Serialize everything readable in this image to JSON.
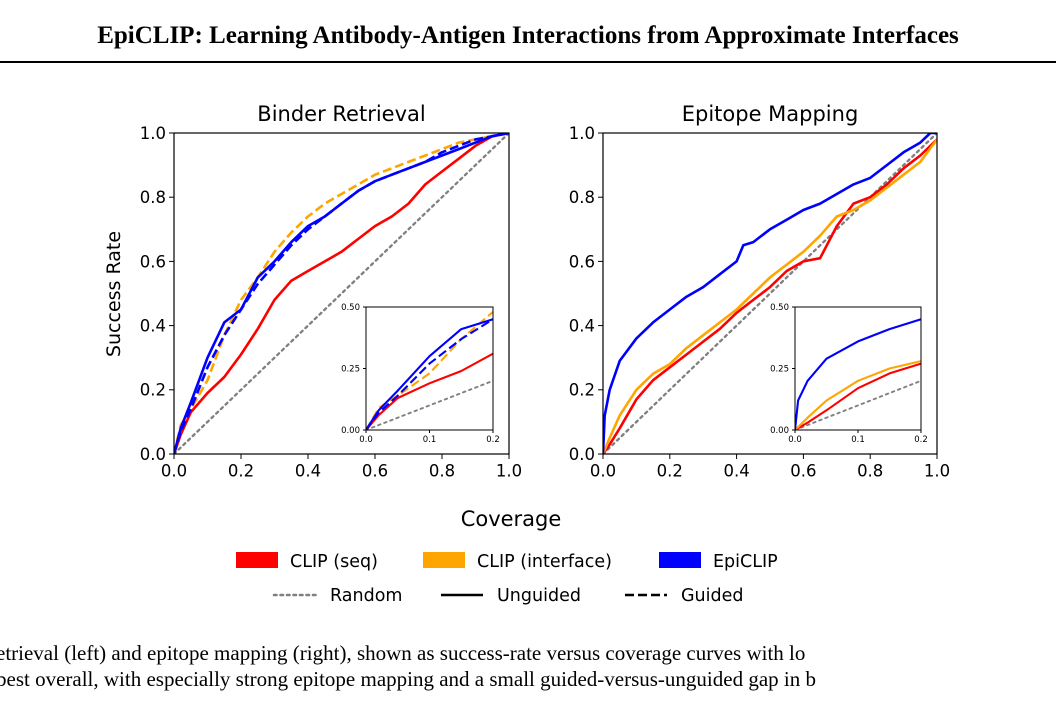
{
  "header": {
    "title": "EpiCLIP: Learning Antibody-Antigen Interactions from Approximate Interfaces"
  },
  "caption": {
    "line1": "etrieval (left) and epitope mapping (right), shown as success-rate versus coverage curves with lo",
    "line2": "best overall, with especially strong epitope mapping and a small guided-versus-unguided gap in b"
  },
  "figure": {
    "shared_xlabel": "Coverage",
    "shared_ylabel": "Success Rate"
  },
  "legend": {
    "colors": [
      {
        "label": "CLIP (seq)",
        "color": "#ff0000"
      },
      {
        "label": "CLIP (interface)",
        "color": "#ffa500"
      },
      {
        "label": "EpiCLIP",
        "color": "#0000ff"
      }
    ],
    "styles": [
      {
        "label": "Random",
        "dash": "dotted",
        "color": "#808080"
      },
      {
        "label": "Unguided",
        "dash": "solid",
        "color": "#000000"
      },
      {
        "label": "Guided",
        "dash": "dashed",
        "color": "#000000"
      }
    ]
  },
  "chart_data": [
    {
      "type": "line",
      "title": "Binder Retrieval",
      "xlabel": "Coverage",
      "ylabel": "Success Rate",
      "xlim": [
        0,
        1
      ],
      "ylim": [
        0,
        1
      ],
      "xticks": [
        "0.0",
        "0.2",
        "0.4",
        "0.6",
        "0.8",
        "1.0"
      ],
      "yticks": [
        "0.0",
        "0.2",
        "0.4",
        "0.6",
        "0.8",
        "1.0"
      ],
      "series": [
        {
          "name": "Random",
          "style": "dotted",
          "color": "#808080",
          "x": [
            0,
            1
          ],
          "y": [
            0,
            1
          ]
        },
        {
          "name": "CLIP (seq), Unguided",
          "style": "solid",
          "color": "#ff0000",
          "x": [
            0,
            0.02,
            0.05,
            0.1,
            0.15,
            0.2,
            0.25,
            0.3,
            0.35,
            0.4,
            0.45,
            0.5,
            0.55,
            0.6,
            0.65,
            0.7,
            0.75,
            0.8,
            0.85,
            0.9,
            0.95,
            1.0
          ],
          "y": [
            0,
            0.06,
            0.13,
            0.19,
            0.24,
            0.31,
            0.39,
            0.48,
            0.54,
            0.57,
            0.6,
            0.63,
            0.67,
            0.71,
            0.74,
            0.78,
            0.84,
            0.88,
            0.92,
            0.96,
            0.99,
            1.0
          ]
        },
        {
          "name": "CLIP (interface), Guided",
          "style": "dashed",
          "color": "#ffa500",
          "x": [
            0,
            0.02,
            0.05,
            0.1,
            0.15,
            0.2,
            0.25,
            0.3,
            0.35,
            0.4,
            0.45,
            0.5,
            0.55,
            0.6,
            0.65,
            0.7,
            0.75,
            0.8,
            0.85,
            0.9,
            0.95,
            1.0
          ],
          "y": [
            0,
            0.09,
            0.14,
            0.23,
            0.37,
            0.48,
            0.55,
            0.63,
            0.69,
            0.74,
            0.78,
            0.81,
            0.84,
            0.87,
            0.89,
            0.91,
            0.93,
            0.95,
            0.97,
            0.98,
            0.99,
            1.0
          ]
        },
        {
          "name": "EpiCLIP, Unguided",
          "style": "solid",
          "color": "#0000ff",
          "x": [
            0,
            0.02,
            0.05,
            0.1,
            0.15,
            0.2,
            0.25,
            0.3,
            0.35,
            0.4,
            0.45,
            0.5,
            0.55,
            0.6,
            0.65,
            0.7,
            0.75,
            0.8,
            0.85,
            0.9,
            0.95,
            1.0
          ],
          "y": [
            0,
            0.08,
            0.16,
            0.3,
            0.41,
            0.45,
            0.55,
            0.6,
            0.66,
            0.71,
            0.74,
            0.78,
            0.82,
            0.85,
            0.87,
            0.89,
            0.91,
            0.93,
            0.95,
            0.97,
            0.99,
            1.0
          ]
        },
        {
          "name": "EpiCLIP, Guided",
          "style": "dashed",
          "color": "#0000ff",
          "x": [
            0,
            0.02,
            0.05,
            0.1,
            0.15,
            0.2,
            0.25,
            0.3,
            0.35,
            0.4,
            0.45,
            0.5,
            0.55,
            0.6,
            0.65,
            0.7,
            0.75,
            0.8,
            0.85,
            0.9,
            0.95,
            1.0
          ],
          "y": [
            0,
            0.07,
            0.14,
            0.27,
            0.37,
            0.45,
            0.53,
            0.59,
            0.65,
            0.7,
            0.74,
            0.78,
            0.82,
            0.85,
            0.87,
            0.89,
            0.91,
            0.94,
            0.96,
            0.98,
            0.99,
            1.0
          ]
        }
      ],
      "inset": {
        "xlim": [
          0,
          0.2
        ],
        "ylim": [
          0,
          0.5
        ],
        "xticks": [
          "0.0",
          "0.1",
          "0.2"
        ],
        "yticks": [
          "0.00",
          "0.25",
          "0.50"
        ]
      }
    },
    {
      "type": "line",
      "title": "Epitope Mapping",
      "xlabel": "Coverage",
      "ylabel": "",
      "xlim": [
        0,
        1
      ],
      "ylim": [
        0,
        1
      ],
      "xticks": [
        "0.0",
        "0.2",
        "0.4",
        "0.6",
        "0.8",
        "1.0"
      ],
      "yticks": [
        "0.0",
        "0.2",
        "0.4",
        "0.6",
        "0.8",
        "1.0"
      ],
      "series": [
        {
          "name": "Random",
          "style": "dotted",
          "color": "#808080",
          "x": [
            0,
            1
          ],
          "y": [
            0,
            1
          ]
        },
        {
          "name": "CLIP (seq), Unguided",
          "style": "solid",
          "color": "#ff0000",
          "x": [
            0,
            0.02,
            0.05,
            0.1,
            0.15,
            0.2,
            0.25,
            0.3,
            0.35,
            0.4,
            0.45,
            0.5,
            0.55,
            0.6,
            0.65,
            0.67,
            0.7,
            0.75,
            0.8,
            0.85,
            0.9,
            0.95,
            1.0
          ],
          "y": [
            0,
            0.03,
            0.08,
            0.17,
            0.23,
            0.27,
            0.31,
            0.35,
            0.39,
            0.44,
            0.48,
            0.52,
            0.57,
            0.6,
            0.61,
            0.65,
            0.71,
            0.78,
            0.8,
            0.84,
            0.89,
            0.93,
            0.98
          ]
        },
        {
          "name": "CLIP (interface), Unguided",
          "style": "solid",
          "color": "#ffa500",
          "x": [
            0,
            0.02,
            0.05,
            0.1,
            0.15,
            0.2,
            0.25,
            0.3,
            0.35,
            0.4,
            0.45,
            0.5,
            0.55,
            0.6,
            0.65,
            0.7,
            0.75,
            0.8,
            0.85,
            0.9,
            0.95,
            1.0
          ],
          "y": [
            0,
            0.05,
            0.12,
            0.2,
            0.25,
            0.28,
            0.33,
            0.37,
            0.41,
            0.45,
            0.5,
            0.55,
            0.59,
            0.63,
            0.68,
            0.74,
            0.76,
            0.79,
            0.83,
            0.87,
            0.91,
            0.98
          ]
        },
        {
          "name": "EpiCLIP, Unguided",
          "style": "solid",
          "color": "#0000ff",
          "x": [
            0,
            0.005,
            0.02,
            0.05,
            0.1,
            0.15,
            0.2,
            0.25,
            0.3,
            0.35,
            0.4,
            0.42,
            0.45,
            0.5,
            0.55,
            0.6,
            0.65,
            0.7,
            0.75,
            0.8,
            0.85,
            0.9,
            0.95,
            0.98,
            1.0
          ],
          "y": [
            0,
            0.12,
            0.2,
            0.29,
            0.36,
            0.41,
            0.45,
            0.49,
            0.52,
            0.56,
            0.6,
            0.65,
            0.66,
            0.7,
            0.73,
            0.76,
            0.78,
            0.81,
            0.84,
            0.86,
            0.9,
            0.94,
            0.97,
            1.0,
            1.0
          ]
        }
      ],
      "inset": {
        "xlim": [
          0,
          0.2
        ],
        "ylim": [
          0,
          0.5
        ],
        "xticks": [
          "0.0",
          "0.1",
          "0.2"
        ],
        "yticks": [
          "0.00",
          "0.25",
          "0.50"
        ]
      }
    }
  ]
}
